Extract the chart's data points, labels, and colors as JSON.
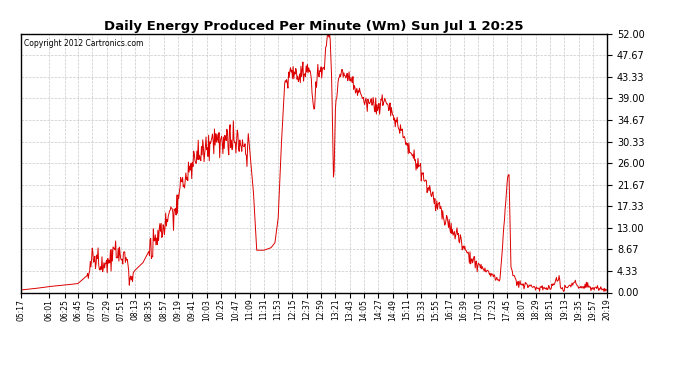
{
  "title": "Daily Energy Produced Per Minute (Wm) Sun Jul 1 20:25",
  "copyright": "Copyright 2012 Cartronics.com",
  "line_color": "#dd0000",
  "bg_color": "#ffffff",
  "plot_bg_color": "#ffffff",
  "grid_color": "#bbbbbb",
  "ylim": [
    0.0,
    52.0
  ],
  "yticks": [
    0.0,
    4.33,
    8.67,
    13.0,
    17.33,
    21.67,
    26.0,
    30.33,
    34.67,
    39.0,
    43.33,
    47.67,
    52.0
  ],
  "xtick_labels": [
    "05:17",
    "06:01",
    "06:25",
    "06:45",
    "07:07",
    "07:29",
    "07:51",
    "08:13",
    "08:35",
    "08:57",
    "09:19",
    "09:41",
    "10:03",
    "10:25",
    "10:47",
    "11:09",
    "11:31",
    "11:53",
    "12:15",
    "12:37",
    "12:59",
    "13:21",
    "13:43",
    "14:05",
    "14:27",
    "14:49",
    "15:11",
    "15:33",
    "15:55",
    "16:17",
    "16:39",
    "17:01",
    "17:23",
    "17:45",
    "18:07",
    "18:29",
    "18:51",
    "19:13",
    "19:35",
    "19:57",
    "20:19"
  ]
}
